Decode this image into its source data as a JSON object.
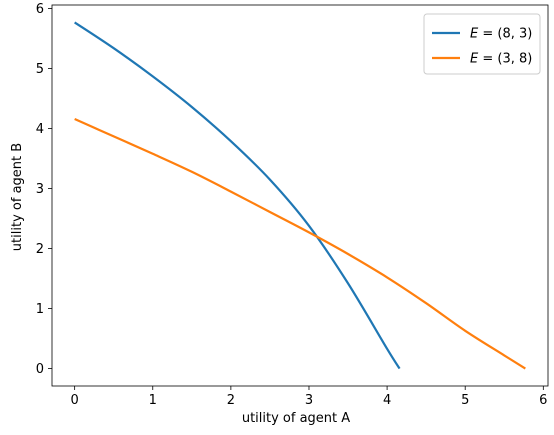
{
  "chart_data": {
    "type": "line",
    "xlabel": "utility of agent A",
    "ylabel": "utility of agent B",
    "xlim": [
      -0.29,
      6.06
    ],
    "ylim": [
      -0.29,
      6.06
    ],
    "xticks": [
      0,
      1,
      2,
      3,
      4,
      5,
      6
    ],
    "yticks": [
      0,
      1,
      2,
      3,
      4,
      5,
      6
    ],
    "grid": false,
    "legend_position": "top-right",
    "series": [
      {
        "name": "E = (8, 3)",
        "legend_main": "E",
        "legend_rest": " = (8, 3)",
        "color": "#1f77b4",
        "x": [
          0.0,
          0.5,
          1.0,
          1.5,
          2.0,
          2.5,
          3.0,
          3.5,
          4.0,
          4.16
        ],
        "y": [
          5.77,
          5.34,
          4.87,
          4.36,
          3.79,
          3.15,
          2.38,
          1.42,
          0.33,
          0.0
        ]
      },
      {
        "name": "E = (3, 8)",
        "legend_main": "E",
        "legend_rest": " = (3, 8)",
        "color": "#ff7f0e",
        "x": [
          0.0,
          0.5,
          1.0,
          1.5,
          2.0,
          2.5,
          3.0,
          3.5,
          4.0,
          4.5,
          5.0,
          5.5,
          5.77
        ],
        "y": [
          4.16,
          3.87,
          3.58,
          3.28,
          2.95,
          2.61,
          2.27,
          1.91,
          1.52,
          1.09,
          0.63,
          0.22,
          0.0
        ]
      }
    ]
  }
}
